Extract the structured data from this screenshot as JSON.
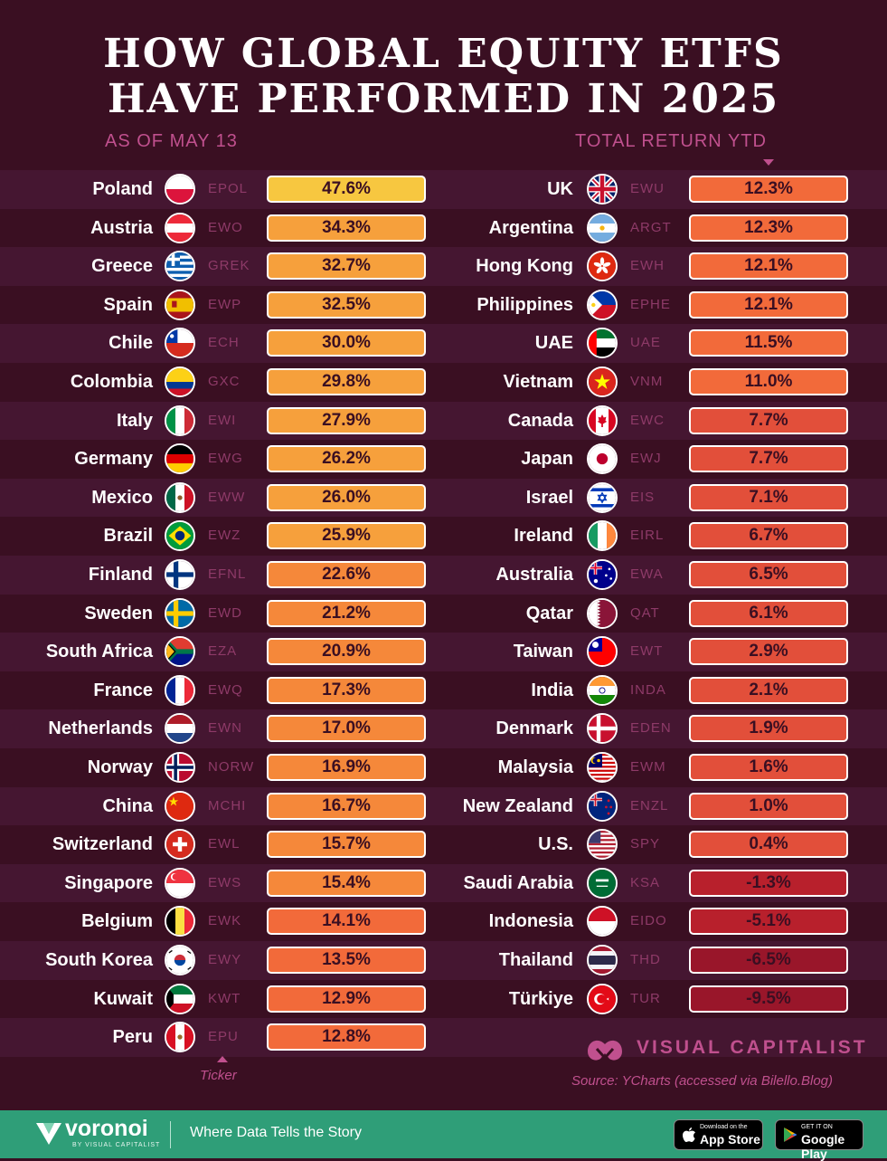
{
  "title_line1": "HOW GLOBAL EQUITY ETFS",
  "title_line2": "HAVE PERFORMED IN 2025",
  "subtitle_left": "AS OF MAY 13",
  "subtitle_right": "TOTAL RETURN YTD",
  "ticker_note": "Ticker",
  "brand": "VISUAL CAPITALIST",
  "source": "Source: YCharts (accessed via Bilello.Blog)",
  "footer": {
    "brand": "voronoi",
    "by": "BY VISUAL CAPITALIST",
    "tagline": "Where Data Tells the Story",
    "app_store_small": "Download on the",
    "app_store_big": "App Store",
    "google_small": "GET IT ON",
    "google_big": "Google Play"
  },
  "chart_data": {
    "type": "bar",
    "unit": "%",
    "left": [
      {
        "country": "Poland",
        "ticker": "EPOL",
        "value": 47.6,
        "label": "47.6%",
        "flag": "poland"
      },
      {
        "country": "Austria",
        "ticker": "EWO",
        "value": 34.3,
        "label": "34.3%",
        "flag": "austria"
      },
      {
        "country": "Greece",
        "ticker": "GREK",
        "value": 32.7,
        "label": "32.7%",
        "flag": "greece"
      },
      {
        "country": "Spain",
        "ticker": "EWP",
        "value": 32.5,
        "label": "32.5%",
        "flag": "spain"
      },
      {
        "country": "Chile",
        "ticker": "ECH",
        "value": 30.0,
        "label": "30.0%",
        "flag": "chile"
      },
      {
        "country": "Colombia",
        "ticker": "GXC",
        "value": 29.8,
        "label": "29.8%",
        "flag": "colombia"
      },
      {
        "country": "Italy",
        "ticker": "EWI",
        "value": 27.9,
        "label": "27.9%",
        "flag": "italy"
      },
      {
        "country": "Germany",
        "ticker": "EWG",
        "value": 26.2,
        "label": "26.2%",
        "flag": "germany"
      },
      {
        "country": "Mexico",
        "ticker": "EWW",
        "value": 26.0,
        "label": "26.0%",
        "flag": "mexico"
      },
      {
        "country": "Brazil",
        "ticker": "EWZ",
        "value": 25.9,
        "label": "25.9%",
        "flag": "brazil"
      },
      {
        "country": "Finland",
        "ticker": "EFNL",
        "value": 22.6,
        "label": "22.6%",
        "flag": "finland"
      },
      {
        "country": "Sweden",
        "ticker": "EWD",
        "value": 21.2,
        "label": "21.2%",
        "flag": "sweden"
      },
      {
        "country": "South Africa",
        "ticker": "EZA",
        "value": 20.9,
        "label": "20.9%",
        "flag": "southafrica"
      },
      {
        "country": "France",
        "ticker": "EWQ",
        "value": 17.3,
        "label": "17.3%",
        "flag": "france"
      },
      {
        "country": "Netherlands",
        "ticker": "EWN",
        "value": 17.0,
        "label": "17.0%",
        "flag": "netherlands"
      },
      {
        "country": "Norway",
        "ticker": "NORW",
        "value": 16.9,
        "label": "16.9%",
        "flag": "norway"
      },
      {
        "country": "China",
        "ticker": "MCHI",
        "value": 16.7,
        "label": "16.7%",
        "flag": "china"
      },
      {
        "country": "Switzerland",
        "ticker": "EWL",
        "value": 15.7,
        "label": "15.7%",
        "flag": "switzerland"
      },
      {
        "country": "Singapore",
        "ticker": "EWS",
        "value": 15.4,
        "label": "15.4%",
        "flag": "singapore"
      },
      {
        "country": "Belgium",
        "ticker": "EWK",
        "value": 14.1,
        "label": "14.1%",
        "flag": "belgium"
      },
      {
        "country": "South Korea",
        "ticker": "EWY",
        "value": 13.5,
        "label": "13.5%",
        "flag": "southkorea"
      },
      {
        "country": "Kuwait",
        "ticker": "KWT",
        "value": 12.9,
        "label": "12.9%",
        "flag": "kuwait"
      },
      {
        "country": "Peru",
        "ticker": "EPU",
        "value": 12.8,
        "label": "12.8%",
        "flag": "peru"
      }
    ],
    "right": [
      {
        "country": "UK",
        "ticker": "EWU",
        "value": 12.3,
        "label": "12.3%",
        "flag": "uk"
      },
      {
        "country": "Argentina",
        "ticker": "ARGT",
        "value": 12.3,
        "label": "12.3%",
        "flag": "argentina"
      },
      {
        "country": "Hong Kong",
        "ticker": "EWH",
        "value": 12.1,
        "label": "12.1%",
        "flag": "hongkong"
      },
      {
        "country": "Philippines",
        "ticker": "EPHE",
        "value": 12.1,
        "label": "12.1%",
        "flag": "philippines"
      },
      {
        "country": "UAE",
        "ticker": "UAE",
        "value": 11.5,
        "label": "11.5%",
        "flag": "uae"
      },
      {
        "country": "Vietnam",
        "ticker": "VNM",
        "value": 11.0,
        "label": "11.0%",
        "flag": "vietnam"
      },
      {
        "country": "Canada",
        "ticker": "EWC",
        "value": 7.7,
        "label": "7.7%",
        "flag": "canada"
      },
      {
        "country": "Japan",
        "ticker": "EWJ",
        "value": 7.7,
        "label": "7.7%",
        "flag": "japan"
      },
      {
        "country": "Israel",
        "ticker": "EIS",
        "value": 7.1,
        "label": "7.1%",
        "flag": "israel"
      },
      {
        "country": "Ireland",
        "ticker": "EIRL",
        "value": 6.7,
        "label": "6.7%",
        "flag": "ireland"
      },
      {
        "country": "Australia",
        "ticker": "EWA",
        "value": 6.5,
        "label": "6.5%",
        "flag": "australia"
      },
      {
        "country": "Qatar",
        "ticker": "QAT",
        "value": 6.1,
        "label": "6.1%",
        "flag": "qatar"
      },
      {
        "country": "Taiwan",
        "ticker": "EWT",
        "value": 2.9,
        "label": "2.9%",
        "flag": "taiwan"
      },
      {
        "country": "India",
        "ticker": "INDA",
        "value": 2.1,
        "label": "2.1%",
        "flag": "india"
      },
      {
        "country": "Denmark",
        "ticker": "EDEN",
        "value": 1.9,
        "label": "1.9%",
        "flag": "denmark"
      },
      {
        "country": "Malaysia",
        "ticker": "EWM",
        "value": 1.6,
        "label": "1.6%",
        "flag": "malaysia"
      },
      {
        "country": "New Zealand",
        "ticker": "ENZL",
        "value": 1.0,
        "label": "1.0%",
        "flag": "newzealand"
      },
      {
        "country": "U.S.",
        "ticker": "SPY",
        "value": 0.4,
        "label": "0.4%",
        "flag": "us"
      },
      {
        "country": "Saudi Arabia",
        "ticker": "KSA",
        "value": -1.3,
        "label": "-1.3%",
        "flag": "saudi"
      },
      {
        "country": "Indonesia",
        "ticker": "EIDO",
        "value": -5.1,
        "label": "-5.1%",
        "flag": "indonesia"
      },
      {
        "country": "Thailand",
        "ticker": "THD",
        "value": -6.5,
        "label": "-6.5%",
        "flag": "thailand"
      },
      {
        "country": "Türkiye",
        "ticker": "TUR",
        "value": -9.5,
        "label": "-9.5%",
        "flag": "turkiye"
      }
    ],
    "color_scale": {
      "high": "#f7c740",
      "mid_high": "#f6a03c",
      "mid": "#f26a3a",
      "low": "#e24f3a",
      "neg": "#b8202c",
      "neg_deep": "#99162a"
    }
  }
}
